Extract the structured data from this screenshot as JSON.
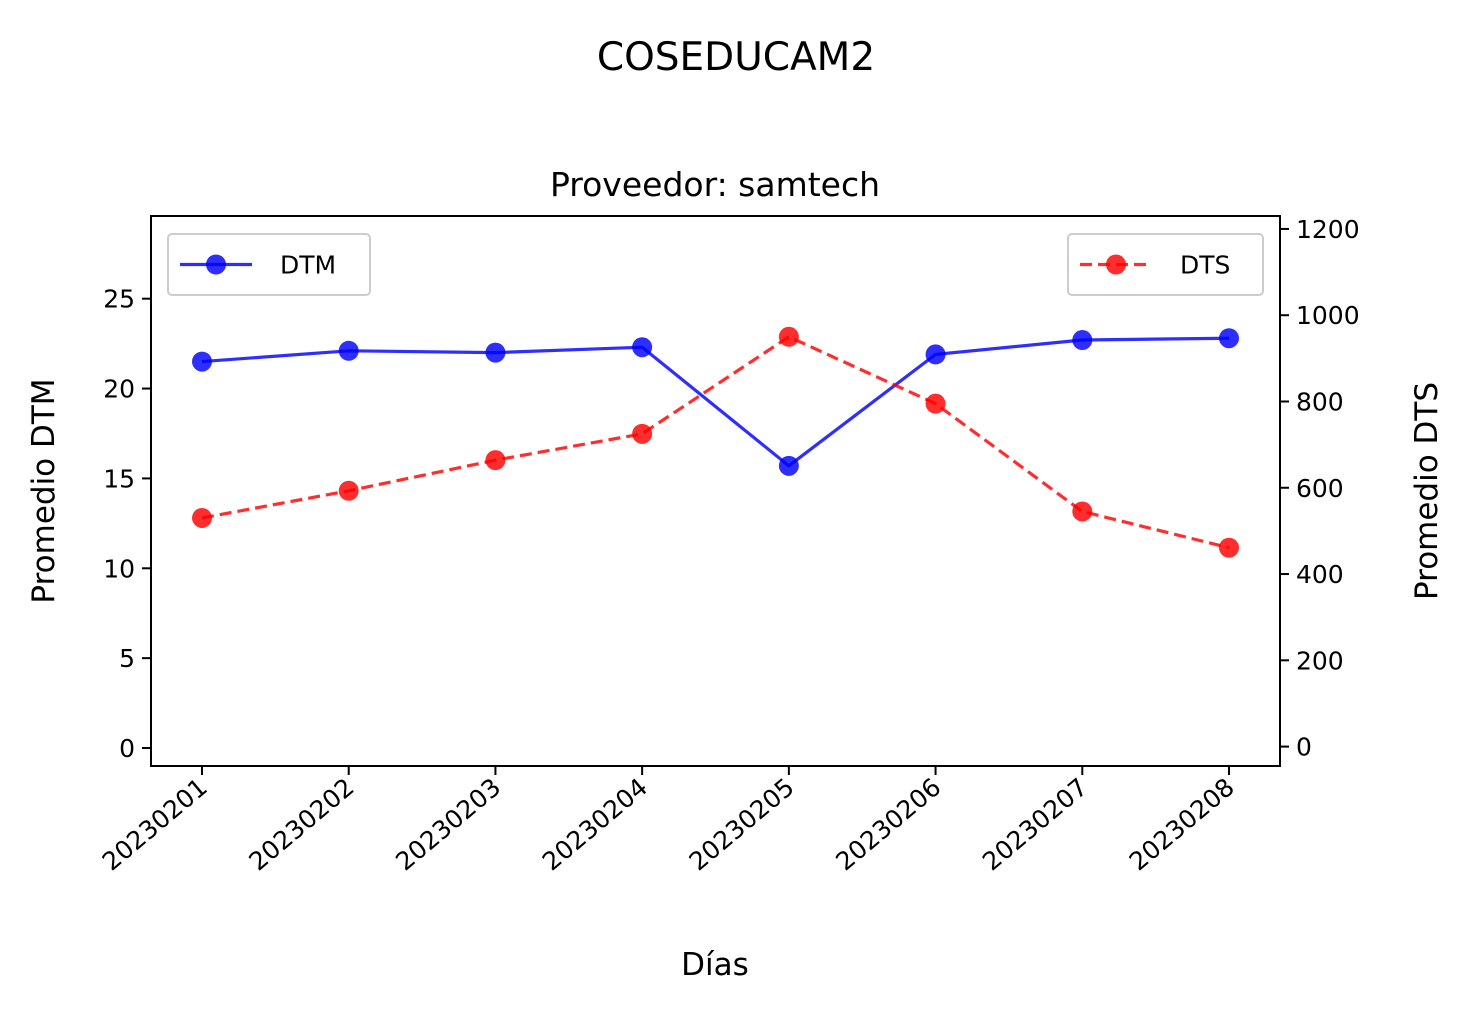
{
  "chart_data": {
    "type": "line",
    "suptitle": "COSEDUCAM2",
    "title": "Proveedor: samtech",
    "xlabel": "Días",
    "ylabel_left": "Promedio DTM",
    "ylabel_right": "Promedio DTS",
    "categories": [
      "20230201",
      "20230202",
      "20230203",
      "20230204",
      "20230205",
      "20230206",
      "20230207",
      "20230208"
    ],
    "ylim_left": [
      -1.0,
      29.6
    ],
    "ylim_right": [
      -45,
      1230
    ],
    "yticks_left": [
      0,
      5,
      10,
      15,
      20,
      25
    ],
    "yticks_right": [
      0,
      200,
      400,
      600,
      800,
      1000,
      1200
    ],
    "grid": false,
    "series": [
      {
        "name": "DTM",
        "axis": "left",
        "color": "#0000ff",
        "line_style": "solid",
        "marker": "circle",
        "values": [
          21.5,
          22.1,
          22.0,
          22.3,
          15.7,
          21.9,
          22.7,
          22.8
        ]
      },
      {
        "name": "DTS",
        "axis": "right",
        "color": "#ff0000",
        "line_style": "dashed",
        "marker": "circle",
        "values": [
          530,
          593,
          664,
          725,
          950,
          795,
          545,
          461
        ]
      }
    ],
    "legend": [
      {
        "series": "DTM",
        "placement": "upper-left"
      },
      {
        "series": "DTS",
        "placement": "upper-right"
      }
    ]
  }
}
